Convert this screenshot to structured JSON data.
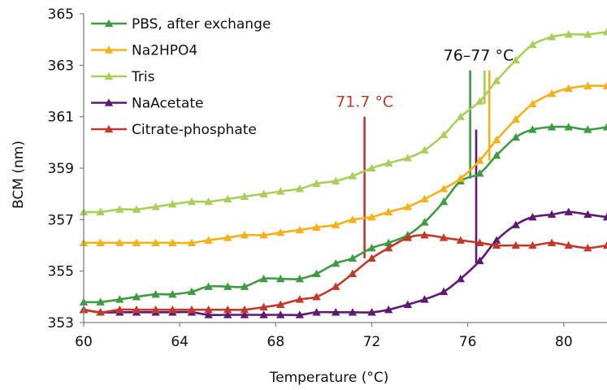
{
  "chart_data": {
    "type": "line",
    "title": "",
    "xlabel": "Temperature (°C)",
    "ylabel": "BCM (nm)",
    "xlim": [
      60,
      81.8
    ],
    "ylim": [
      353,
      365
    ],
    "xticks": [
      60,
      64,
      68,
      72,
      76,
      80
    ],
    "yticks": [
      353,
      355,
      357,
      359,
      361,
      363,
      365
    ],
    "grid": false,
    "legend_position": "top-left",
    "series": [
      {
        "name": "PBS, after exchange",
        "color": "#3e9a43",
        "x": [
          60,
          60.7,
          61.5,
          62.2,
          63.0,
          63.7,
          64.5,
          65.2,
          66.0,
          66.7,
          67.5,
          68.2,
          69.0,
          69.7,
          70.5,
          71.2,
          72.0,
          72.7,
          73.5,
          74.2,
          75.0,
          75.7,
          76.5,
          77.2,
          78.0,
          78.7,
          79.5,
          80.2,
          81.0,
          81.8
        ],
        "y": [
          353.8,
          353.8,
          353.9,
          354.0,
          354.1,
          354.1,
          354.2,
          354.4,
          354.4,
          354.4,
          354.7,
          354.7,
          354.7,
          354.9,
          355.3,
          355.5,
          355.9,
          356.1,
          356.4,
          356.9,
          357.7,
          358.5,
          358.8,
          359.5,
          360.2,
          360.5,
          360.6,
          360.6,
          360.5,
          360.6
        ]
      },
      {
        "name": "Na2HPO4",
        "color": "#f5b01a",
        "x": [
          60,
          60.7,
          61.5,
          62.2,
          63.0,
          63.7,
          64.5,
          65.2,
          66.0,
          66.7,
          67.5,
          68.2,
          69.0,
          69.7,
          70.5,
          71.2,
          72.0,
          72.7,
          73.5,
          74.2,
          75.0,
          75.7,
          76.5,
          77.2,
          78.0,
          78.7,
          79.5,
          80.2,
          81.0,
          81.8
        ],
        "y": [
          356.1,
          356.1,
          356.1,
          356.1,
          356.1,
          356.1,
          356.1,
          356.2,
          356.3,
          356.4,
          356.4,
          356.5,
          356.6,
          356.7,
          356.8,
          357.0,
          357.1,
          357.3,
          357.5,
          357.8,
          358.2,
          358.6,
          359.3,
          360.1,
          360.9,
          361.5,
          361.9,
          362.1,
          362.2,
          362.2
        ]
      },
      {
        "name": "Tris",
        "color": "#a9cf5b",
        "x": [
          60,
          60.7,
          61.5,
          62.2,
          63.0,
          63.7,
          64.5,
          65.2,
          66.0,
          66.7,
          67.5,
          68.2,
          69.0,
          69.7,
          70.5,
          71.2,
          72.0,
          72.7,
          73.5,
          74.2,
          75.0,
          75.7,
          76.5,
          77.2,
          78.0,
          78.7,
          79.5,
          80.2,
          81.0,
          81.8
        ],
        "y": [
          357.3,
          357.3,
          357.4,
          357.4,
          357.5,
          357.6,
          357.7,
          357.7,
          357.8,
          357.9,
          358.0,
          358.1,
          358.2,
          358.4,
          358.5,
          358.7,
          359.0,
          359.2,
          359.4,
          359.7,
          360.3,
          361.0,
          361.6,
          362.4,
          363.2,
          363.8,
          364.1,
          364.2,
          364.2,
          364.3
        ]
      },
      {
        "name": "NaAcetate",
        "color": "#5c1a73",
        "x": [
          60,
          60.7,
          61.5,
          62.2,
          63.0,
          63.7,
          64.5,
          65.2,
          66.0,
          66.7,
          67.5,
          68.2,
          69.0,
          69.7,
          70.5,
          71.2,
          72.0,
          72.7,
          73.5,
          74.2,
          75.0,
          75.7,
          76.5,
          77.2,
          78.0,
          78.7,
          79.5,
          80.2,
          81.0,
          81.8
        ],
        "y": [
          353.5,
          353.4,
          353.4,
          353.4,
          353.4,
          353.4,
          353.4,
          353.3,
          353.3,
          353.3,
          353.3,
          353.3,
          353.3,
          353.4,
          353.4,
          353.4,
          353.4,
          353.5,
          353.7,
          353.9,
          354.2,
          354.7,
          355.4,
          356.2,
          356.8,
          357.1,
          357.2,
          357.3,
          357.2,
          357.1
        ]
      },
      {
        "name": "Citrate-phosphate",
        "color": "#c0392b",
        "x": [
          60,
          60.7,
          61.5,
          62.2,
          63.0,
          63.7,
          64.5,
          65.2,
          66.0,
          66.7,
          67.5,
          68.2,
          69.0,
          69.7,
          70.5,
          71.2,
          72.0,
          72.7,
          73.5,
          74.2,
          75.0,
          75.7,
          76.5,
          77.2,
          78.0,
          78.7,
          79.5,
          80.2,
          81.0,
          81.8
        ],
        "y": [
          353.5,
          353.4,
          353.5,
          353.5,
          353.5,
          353.5,
          353.5,
          353.5,
          353.5,
          353.5,
          353.6,
          353.7,
          353.9,
          354.0,
          354.4,
          354.9,
          355.5,
          355.9,
          356.3,
          356.4,
          356.3,
          356.2,
          356.1,
          356.0,
          356.0,
          356.0,
          356.1,
          356.0,
          355.9,
          356.0
        ]
      }
    ],
    "annotations": [
      {
        "text": "71.7 °C",
        "color": "#c0392b",
        "lines": [
          {
            "x": 71.7,
            "y_bottom": 355.5,
            "y_top": 361.0,
            "color": "#c0392b"
          }
        ]
      },
      {
        "text": "76–77 °C",
        "color": "#111111",
        "lines": [
          {
            "x": 76.1,
            "y_bottom": 358.6,
            "y_top": 362.8,
            "color": "#3e9a43"
          },
          {
            "x": 76.35,
            "y_bottom": 355.3,
            "y_top": 360.5,
            "color": "#5c1a73"
          },
          {
            "x": 76.7,
            "y_bottom": 361.5,
            "y_top": 362.8,
            "color": "#a9cf5b"
          },
          {
            "x": 76.9,
            "y_bottom": 359.3,
            "y_top": 362.8,
            "color": "#f5b01a"
          }
        ]
      }
    ]
  }
}
